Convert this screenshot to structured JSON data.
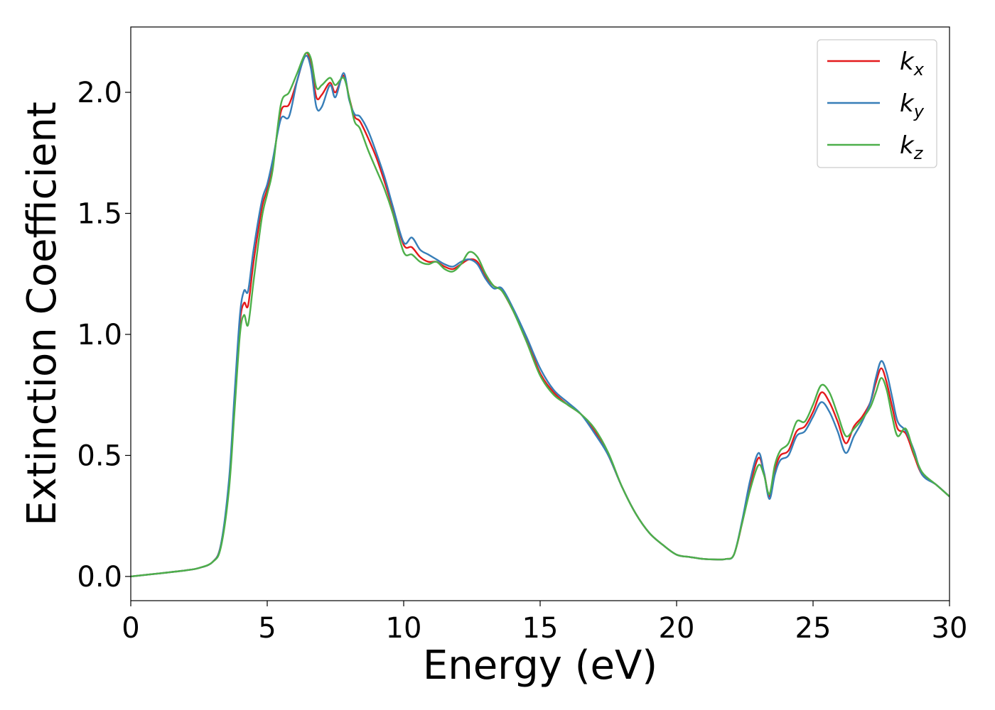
{
  "chart_data": {
    "type": "line",
    "title": "",
    "xlabel": "Energy (eV)",
    "ylabel": "Extinction Coefficient",
    "xlim": [
      0,
      30
    ],
    "ylim": [
      -0.1,
      2.27
    ],
    "xticks": [
      0,
      5,
      10,
      15,
      20,
      25,
      30
    ],
    "xtick_labels": [
      "0",
      "5",
      "10",
      "15",
      "20",
      "25",
      "30"
    ],
    "yticks": [
      0.0,
      0.5,
      1.0,
      1.5,
      2.0
    ],
    "ytick_labels": [
      "0.0",
      "0.5",
      "1.0",
      "1.5",
      "2.0"
    ],
    "grid": false,
    "legend_position": "top-right",
    "x": [
      0,
      1,
      2,
      2.5,
      3,
      3.3,
      3.6,
      3.8,
      4.0,
      4.15,
      4.3,
      4.5,
      4.8,
      5.0,
      5.2,
      5.5,
      5.8,
      6.1,
      6.4,
      6.6,
      6.8,
      7.0,
      7.3,
      7.5,
      7.8,
      8.0,
      8.2,
      8.4,
      8.7,
      9.0,
      9.3,
      9.6,
      10.0,
      10.3,
      10.6,
      10.9,
      11.2,
      11.5,
      11.8,
      12.1,
      12.4,
      12.7,
      13.0,
      13.3,
      13.6,
      14.0,
      14.5,
      15.0,
      15.5,
      16.0,
      16.5,
      17.0,
      17.5,
      18.0,
      18.5,
      19.0,
      19.5,
      20.0,
      20.5,
      21.0,
      21.5,
      21.8,
      22.1,
      22.4,
      22.7,
      23.0,
      23.2,
      23.4,
      23.6,
      23.8,
      24.1,
      24.4,
      24.7,
      25.0,
      25.3,
      25.6,
      25.9,
      26.2,
      26.5,
      26.8,
      27.1,
      27.3,
      27.5,
      27.7,
      27.9,
      28.1,
      28.4,
      28.7,
      29.0,
      29.5,
      30.0
    ],
    "series": [
      {
        "name": "k",
        "subscript": "x",
        "color": "#e41a1c",
        "values": [
          0.0,
          0.012,
          0.025,
          0.035,
          0.06,
          0.13,
          0.38,
          0.72,
          1.05,
          1.13,
          1.12,
          1.3,
          1.52,
          1.6,
          1.7,
          1.92,
          1.95,
          2.05,
          2.16,
          2.12,
          1.98,
          1.99,
          2.04,
          2.0,
          2.07,
          1.98,
          1.9,
          1.88,
          1.81,
          1.73,
          1.63,
          1.52,
          1.37,
          1.36,
          1.32,
          1.3,
          1.3,
          1.28,
          1.27,
          1.29,
          1.31,
          1.3,
          1.24,
          1.2,
          1.18,
          1.1,
          0.98,
          0.84,
          0.76,
          0.71,
          0.67,
          0.6,
          0.5,
          0.37,
          0.26,
          0.18,
          0.13,
          0.09,
          0.08,
          0.072,
          0.07,
          0.072,
          0.09,
          0.22,
          0.38,
          0.49,
          0.43,
          0.33,
          0.44,
          0.5,
          0.52,
          0.6,
          0.62,
          0.68,
          0.76,
          0.72,
          0.64,
          0.55,
          0.62,
          0.66,
          0.72,
          0.8,
          0.86,
          0.8,
          0.7,
          0.61,
          0.59,
          0.5,
          0.42,
          0.38,
          0.33
        ]
      },
      {
        "name": "k",
        "subscript": "y",
        "color": "#377eb8",
        "values": [
          0.0,
          0.012,
          0.025,
          0.035,
          0.06,
          0.13,
          0.4,
          0.75,
          1.08,
          1.18,
          1.18,
          1.35,
          1.55,
          1.62,
          1.72,
          1.89,
          1.9,
          2.05,
          2.15,
          2.1,
          1.94,
          1.94,
          2.03,
          1.98,
          2.08,
          1.97,
          1.91,
          1.9,
          1.84,
          1.75,
          1.65,
          1.53,
          1.38,
          1.4,
          1.35,
          1.33,
          1.31,
          1.29,
          1.28,
          1.3,
          1.31,
          1.29,
          1.23,
          1.19,
          1.19,
          1.11,
          0.99,
          0.86,
          0.77,
          0.72,
          0.67,
          0.59,
          0.5,
          0.37,
          0.26,
          0.18,
          0.13,
          0.09,
          0.08,
          0.072,
          0.07,
          0.072,
          0.09,
          0.23,
          0.4,
          0.51,
          0.43,
          0.32,
          0.42,
          0.48,
          0.5,
          0.58,
          0.6,
          0.66,
          0.72,
          0.68,
          0.6,
          0.51,
          0.58,
          0.64,
          0.72,
          0.82,
          0.89,
          0.84,
          0.74,
          0.64,
          0.6,
          0.52,
          0.42,
          0.38,
          0.33
        ]
      },
      {
        "name": "k",
        "subscript": "z",
        "color": "#4daf4a",
        "values": [
          0.0,
          0.012,
          0.025,
          0.035,
          0.06,
          0.12,
          0.36,
          0.68,
          1.0,
          1.08,
          1.04,
          1.22,
          1.48,
          1.58,
          1.68,
          1.95,
          2.0,
          2.08,
          2.16,
          2.14,
          2.02,
          2.03,
          2.06,
          2.03,
          2.06,
          1.98,
          1.88,
          1.85,
          1.76,
          1.68,
          1.6,
          1.5,
          1.34,
          1.33,
          1.3,
          1.29,
          1.3,
          1.27,
          1.26,
          1.29,
          1.34,
          1.32,
          1.25,
          1.2,
          1.18,
          1.1,
          0.97,
          0.83,
          0.75,
          0.71,
          0.67,
          0.61,
          0.51,
          0.37,
          0.26,
          0.18,
          0.13,
          0.09,
          0.08,
          0.072,
          0.07,
          0.072,
          0.09,
          0.22,
          0.36,
          0.46,
          0.42,
          0.34,
          0.46,
          0.52,
          0.55,
          0.64,
          0.64,
          0.71,
          0.79,
          0.76,
          0.67,
          0.58,
          0.61,
          0.65,
          0.7,
          0.76,
          0.82,
          0.77,
          0.66,
          0.58,
          0.61,
          0.51,
          0.43,
          0.38,
          0.33
        ]
      }
    ]
  }
}
